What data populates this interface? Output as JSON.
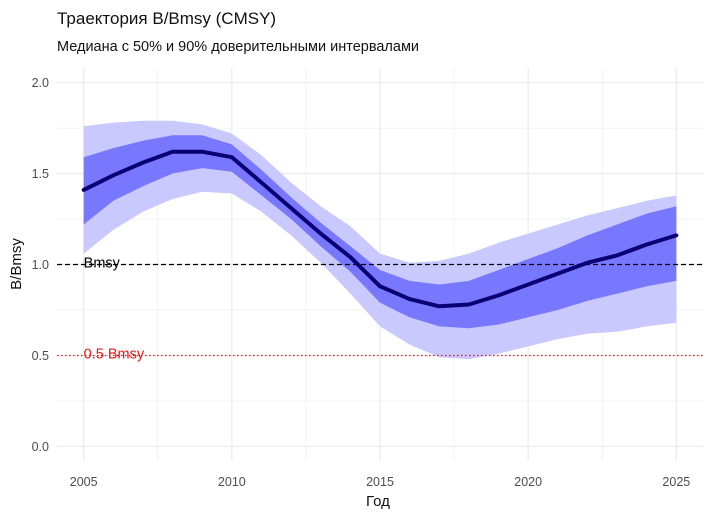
{
  "chart_data": {
    "type": "line",
    "title": "Траектория B/Bmsy (CMSY)",
    "subtitle": "Медиана с 50% и 90% доверительными интервалами",
    "xlabel": "Год",
    "ylabel": "B/Bmsy",
    "xlim": [
      2004.1,
      2025.9
    ],
    "ylim": [
      -0.08,
      2.08
    ],
    "x_ticks": [
      2005,
      2010,
      2015,
      2020,
      2025
    ],
    "y_ticks": [
      0.0,
      0.5,
      1.0,
      1.5,
      2.0
    ],
    "x_tick_labels": [
      "2005",
      "2010",
      "2015",
      "2020",
      "2025"
    ],
    "y_tick_labels": [
      "0.0",
      "0.5",
      "1.0",
      "1.5",
      "2.0"
    ],
    "grid": true,
    "x": [
      2005,
      2006,
      2007,
      2008,
      2009,
      2010,
      2011,
      2012,
      2013,
      2014,
      2015,
      2016,
      2017,
      2018,
      2019,
      2020,
      2021,
      2022,
      2023,
      2024,
      2025
    ],
    "series": [
      {
        "role": "median",
        "values": [
          1.41,
          1.49,
          1.56,
          1.62,
          1.62,
          1.59,
          1.45,
          1.31,
          1.17,
          1.04,
          0.88,
          0.81,
          0.77,
          0.78,
          0.83,
          0.89,
          0.95,
          1.01,
          1.05,
          1.11,
          1.16
        ]
      },
      {
        "role": "ci50_lower",
        "values": [
          1.22,
          1.35,
          1.43,
          1.5,
          1.53,
          1.51,
          1.38,
          1.25,
          1.1,
          0.96,
          0.79,
          0.71,
          0.66,
          0.65,
          0.67,
          0.71,
          0.75,
          0.8,
          0.84,
          0.88,
          0.91
        ]
      },
      {
        "role": "ci50_upper",
        "values": [
          1.59,
          1.64,
          1.68,
          1.71,
          1.71,
          1.66,
          1.52,
          1.37,
          1.23,
          1.1,
          0.97,
          0.91,
          0.89,
          0.91,
          0.97,
          1.03,
          1.09,
          1.16,
          1.22,
          1.28,
          1.32
        ]
      },
      {
        "role": "ci90_lower",
        "values": [
          1.06,
          1.19,
          1.29,
          1.36,
          1.4,
          1.39,
          1.29,
          1.16,
          1.01,
          0.84,
          0.66,
          0.56,
          0.49,
          0.48,
          0.51,
          0.55,
          0.59,
          0.62,
          0.63,
          0.66,
          0.68
        ]
      },
      {
        "role": "ci90_upper",
        "values": [
          1.76,
          1.78,
          1.79,
          1.79,
          1.77,
          1.72,
          1.6,
          1.45,
          1.32,
          1.21,
          1.06,
          1.01,
          1.02,
          1.06,
          1.12,
          1.17,
          1.22,
          1.27,
          1.31,
          1.35,
          1.38
        ]
      }
    ],
    "reference_lines": [
      {
        "value": 1.0,
        "label": "Bmsy",
        "color": "#000000",
        "dash": "dashed",
        "label_x": 2005
      },
      {
        "value": 0.5,
        "label": "0.5 Bmsy",
        "color": "#e31a1c",
        "dash": "dotted",
        "label_x": 2005
      }
    ],
    "colors": {
      "median": "#0a0073",
      "ci50": "#7878ff",
      "ci90": "#c9c9ff",
      "grid": "#ebebeb"
    }
  }
}
